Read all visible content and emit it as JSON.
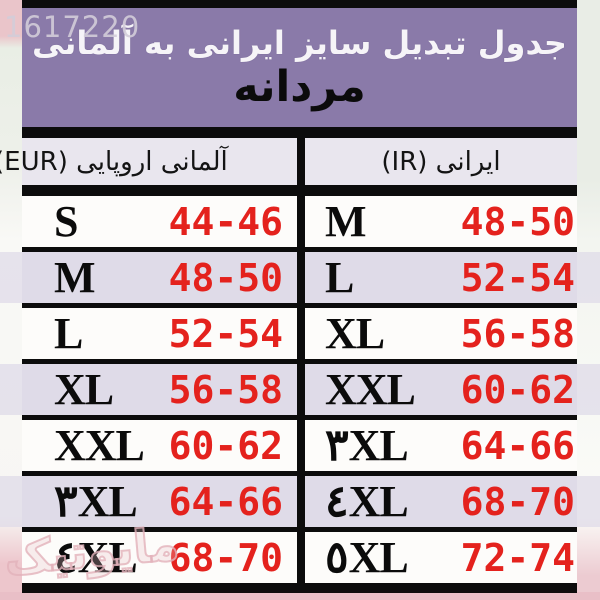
{
  "watermarks": {
    "top_left": "1617220",
    "bottom_left": "مایوتیک"
  },
  "header": {
    "title": "جدول تبدیل سایز ایرانی به آلمانی",
    "subtitle": "مردانه"
  },
  "table": {
    "columns": {
      "eur_label": "آلمانی اروپایی (EUR)",
      "ir_label": "ایرانی (IR)"
    },
    "rows": [
      {
        "eur_size": "S",
        "eur_range": "44-46",
        "ir_size": "M",
        "ir_range": "48-50"
      },
      {
        "eur_size": "M",
        "eur_range": "48-50",
        "ir_size": "L",
        "ir_range": "52-54"
      },
      {
        "eur_size": "L",
        "eur_range": "52-54",
        "ir_size": "XL",
        "ir_range": "56-58"
      },
      {
        "eur_size": "XL",
        "eur_range": "56-58",
        "ir_size": "XXL",
        "ir_range": "60-62"
      },
      {
        "eur_size": "XXL",
        "eur_range": "60-62",
        "ir_size": "٣XL",
        "ir_range": "64-66"
      },
      {
        "eur_size": "٣XL",
        "eur_range": "64-66",
        "ir_size": "٤XL",
        "ir_range": "68-70"
      },
      {
        "eur_size": "٤XL",
        "eur_range": "68-70",
        "ir_size": "٥XL",
        "ir_range": "72-74"
      }
    ]
  },
  "colors": {
    "purple": "#8a7aa9",
    "lavender": "#dfdbe8",
    "headgray": "#e9e6ee",
    "red": "#e4221d",
    "pink_margin": "#eac5ca"
  }
}
